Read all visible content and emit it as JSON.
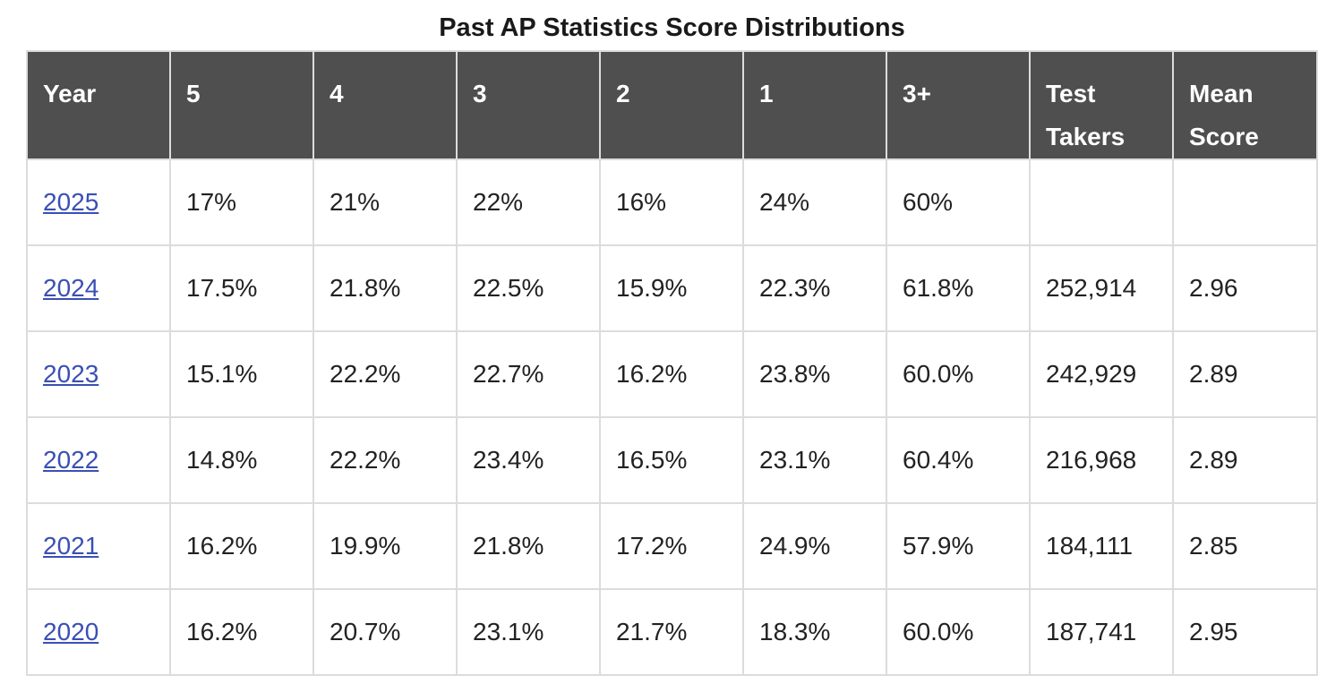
{
  "caption": "Past AP Statistics Score Distributions",
  "table": {
    "headers": [
      "Year",
      "5",
      "4",
      "3",
      "2",
      "1",
      "3+",
      "Test Takers",
      "Mean Score"
    ],
    "rows": [
      [
        "2025",
        "17%",
        "21%",
        "22%",
        "16%",
        "24%",
        "60%",
        "",
        ""
      ],
      [
        "2024",
        "17.5%",
        "21.8%",
        "22.5%",
        "15.9%",
        "22.3%",
        "61.8%",
        "252,914",
        "2.96"
      ],
      [
        "2023",
        "15.1%",
        "22.2%",
        "22.7%",
        "16.2%",
        "23.8%",
        "60.0%",
        "242,929",
        "2.89"
      ],
      [
        "2022",
        "14.8%",
        "22.2%",
        "23.4%",
        "16.5%",
        "23.1%",
        "60.4%",
        "216,968",
        "2.89"
      ],
      [
        "2021",
        "16.2%",
        "19.9%",
        "21.8%",
        "17.2%",
        "24.9%",
        "57.9%",
        "184,111",
        "2.85"
      ],
      [
        "2020",
        "16.2%",
        "20.7%",
        "23.1%",
        "21.7%",
        "18.3%",
        "60.0%",
        "187,741",
        "2.95"
      ]
    ]
  },
  "colors": {
    "header_bg": "#4f4f4f",
    "header_text": "#ffffff",
    "border": "#dcdcdc",
    "link": "#3a4fb5"
  }
}
